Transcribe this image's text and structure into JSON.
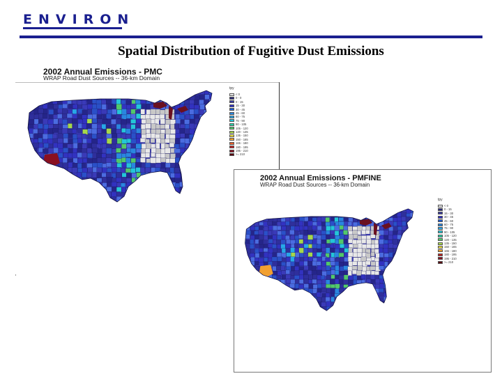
{
  "logo": {
    "text": "ENVIRON"
  },
  "slide": {
    "title": "Spatial Distribution of Fugitive Dust Emissions"
  },
  "maps": [
    {
      "title": "2002 Annual Emissions  - PMC",
      "subtitle": "WRAP Road Dust Sources -- 36-km Domain",
      "legend": {
        "unit": "tpy",
        "items": [
          {
            "label": "< 0",
            "color": "#e6e6e6"
          },
          {
            "label": "0 - 0",
            "color": "#2b2b7a"
          },
          {
            "label": "0 - 15",
            "color": "#3a3aa0"
          },
          {
            "label": "15 - 30",
            "color": "#3030c8"
          },
          {
            "label": "30 - 45",
            "color": "#1f5fd6"
          },
          {
            "label": "45 - 60",
            "color": "#2a86e0"
          },
          {
            "label": "60 - 75",
            "color": "#27a7e8"
          },
          {
            "label": "75 - 90",
            "color": "#24c6d8"
          },
          {
            "label": "90 - 105",
            "color": "#2ad0a8"
          },
          {
            "label": "105 - 120",
            "color": "#52c86a"
          },
          {
            "label": "120 - 135",
            "color": "#a6d84a"
          },
          {
            "label": "135 - 150",
            "color": "#f0e040"
          },
          {
            "label": "150 - 165",
            "color": "#f2a030"
          },
          {
            "label": "165 - 180",
            "color": "#e8602a"
          },
          {
            "label": "180 - 195",
            "color": "#c02020"
          },
          {
            "label": "195 - 210",
            "color": "#8a1020"
          },
          {
            "label": ">= 210",
            "color": "#5a0010"
          }
        ]
      }
    },
    {
      "title": "2002 Annual Emissions  - PMFINE",
      "subtitle": "WRAP Road Dust Sources -- 36-km Domain",
      "legend": {
        "unit": "tpy",
        "items": [
          {
            "label": "< 0",
            "color": "#e6e6e6"
          },
          {
            "label": "0 - 15",
            "color": "#2b2b7a"
          },
          {
            "label": "15 - 30",
            "color": "#3a3aa0"
          },
          {
            "label": "30 - 45",
            "color": "#3030c8"
          },
          {
            "label": "45 - 60",
            "color": "#1f5fd6"
          },
          {
            "label": "60 - 75",
            "color": "#2a86e0"
          },
          {
            "label": "75 - 90",
            "color": "#27a7e8"
          },
          {
            "label": "90 - 105",
            "color": "#24c6d8"
          },
          {
            "label": "105 - 120",
            "color": "#2ad0a8"
          },
          {
            "label": "120 - 135",
            "color": "#52c86a"
          },
          {
            "label": "135 - 150",
            "color": "#a6d84a"
          },
          {
            "label": "150 - 165",
            "color": "#f0e040"
          },
          {
            "label": "165 - 180",
            "color": "#f2a030"
          },
          {
            "label": "180 - 195",
            "color": "#c02020"
          },
          {
            "label": "195 - 210",
            "color": "#8a1020"
          },
          {
            "label": ">= 210",
            "color": "#5a0010"
          }
        ]
      }
    }
  ],
  "colors": {
    "brand": "#1a1f8f",
    "map_base": "#3a3ab8",
    "map_dark": "#25258a",
    "map_light": "#4b6ce0",
    "hotspot_red": "#8a1020",
    "hotspot_orange": "#f2a030",
    "nodata": "#e8e8e8",
    "lake_dark": "#6a1020"
  }
}
